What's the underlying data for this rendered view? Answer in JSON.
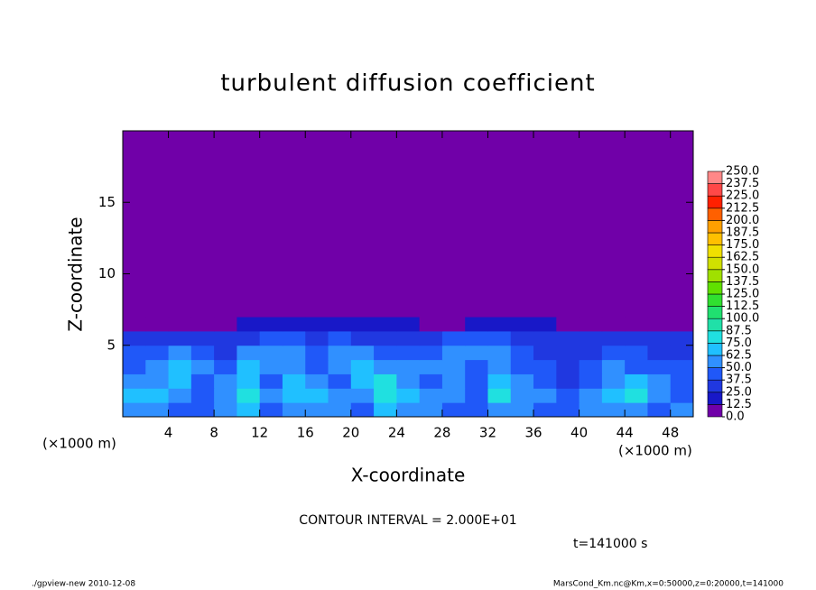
{
  "chart_data": {
    "type": "heatmap",
    "title": "turbulent diffusion coefficient",
    "x_label": "X-coordinate",
    "y_label": "Z-coordinate",
    "x_unit_left": "(×1000 m)",
    "x_unit_right": "(×1000 m)",
    "contour_note": "CONTOUR INTERVAL = 2.000E+01",
    "time_note": "t=141000 s",
    "footer_left": "./gpview-new  2010-12-08",
    "footer_right": "MarsCond_Km.nc@Km,x=0:50000,z=0:20000,t=141000",
    "xlim": [
      0,
      50
    ],
    "ylim": [
      0,
      20
    ],
    "xticks": [
      4,
      8,
      12,
      16,
      20,
      24,
      28,
      32,
      36,
      40,
      44,
      48
    ],
    "yticks": [
      5,
      10,
      15
    ],
    "x_bins": [
      0,
      2,
      4,
      6,
      8,
      10,
      12,
      14,
      16,
      18,
      20,
      22,
      24,
      26,
      28,
      30,
      32,
      34,
      36,
      38,
      40,
      42,
      44,
      46,
      48,
      50
    ],
    "y_bins": [
      0,
      1,
      2,
      3,
      4,
      5,
      6,
      7,
      20
    ],
    "values": [
      [
        55,
        60,
        45,
        40,
        50,
        65,
        45,
        55,
        60,
        50,
        45,
        70,
        55,
        50,
        45,
        40,
        60,
        55,
        45,
        40,
        50,
        55,
        60,
        45,
        50
      ],
      [
        65,
        70,
        55,
        45,
        60,
        75,
        50,
        70,
        65,
        55,
        60,
        80,
        70,
        60,
        50,
        45,
        75,
        60,
        50,
        45,
        55,
        70,
        75,
        55,
        45
      ],
      [
        50,
        60,
        65,
        45,
        55,
        70,
        45,
        65,
        55,
        45,
        70,
        75,
        60,
        45,
        55,
        40,
        70,
        50,
        40,
        35,
        45,
        60,
        65,
        50,
        40
      ],
      [
        45,
        55,
        70,
        50,
        40,
        65,
        55,
        60,
        45,
        60,
        65,
        55,
        50,
        55,
        60,
        45,
        55,
        45,
        40,
        35,
        40,
        50,
        45,
        40,
        40
      ],
      [
        40,
        45,
        50,
        45,
        35,
        50,
        60,
        55,
        40,
        55,
        50,
        45,
        45,
        45,
        50,
        50,
        55,
        40,
        35,
        30,
        35,
        40,
        40,
        35,
        35
      ],
      [
        30,
        35,
        35,
        30,
        30,
        35,
        40,
        40,
        35,
        40,
        35,
        30,
        35,
        30,
        40,
        40,
        40,
        35,
        30,
        30,
        30,
        30,
        30,
        25,
        25
      ],
      [
        0,
        0,
        0,
        0,
        10,
        20,
        20,
        20,
        15,
        15,
        20,
        20,
        15,
        5,
        0,
        15,
        20,
        20,
        15,
        10,
        0,
        0,
        0,
        0,
        0
      ],
      [
        0,
        0,
        0,
        0,
        0,
        0,
        0,
        0,
        0,
        0,
        0,
        0,
        0,
        0,
        0,
        0,
        0,
        0,
        0,
        0,
        0,
        0,
        0,
        0,
        0
      ]
    ],
    "levels": [
      {
        "value": 0,
        "label": "0.0"
      },
      12.5,
      {
        "value": 25,
        "label": "25.0"
      },
      37.5,
      {
        "value": 50,
        "label": "50.0"
      },
      62.5,
      {
        "value": 75,
        "label": "75.0"
      },
      87.5,
      {
        "value": 100,
        "label": "100.0"
      },
      112.5,
      {
        "value": 125,
        "label": "125.0"
      },
      137.5,
      {
        "value": 150,
        "label": "150.0"
      },
      162.5,
      {
        "value": 175,
        "label": "175.0"
      },
      187.5,
      {
        "value": 200,
        "label": "200.0"
      },
      212.5,
      {
        "value": 225,
        "label": "225.0"
      },
      237.5,
      {
        "value": 250,
        "label": "250.0"
      }
    ],
    "colors": [
      "#7000a8",
      "#1818c8",
      "#2038e0",
      "#2058f8",
      "#3090ff",
      "#20c0ff",
      "#20e0e0",
      "#20e0a8",
      "#20e070",
      "#30e030",
      "#60e000",
      "#a0e000",
      "#d0e000",
      "#f0e000",
      "#ffc000",
      "#ffa000",
      "#ff6000",
      "#ff2000",
      "#ff4848",
      "#ff8888"
    ]
  }
}
